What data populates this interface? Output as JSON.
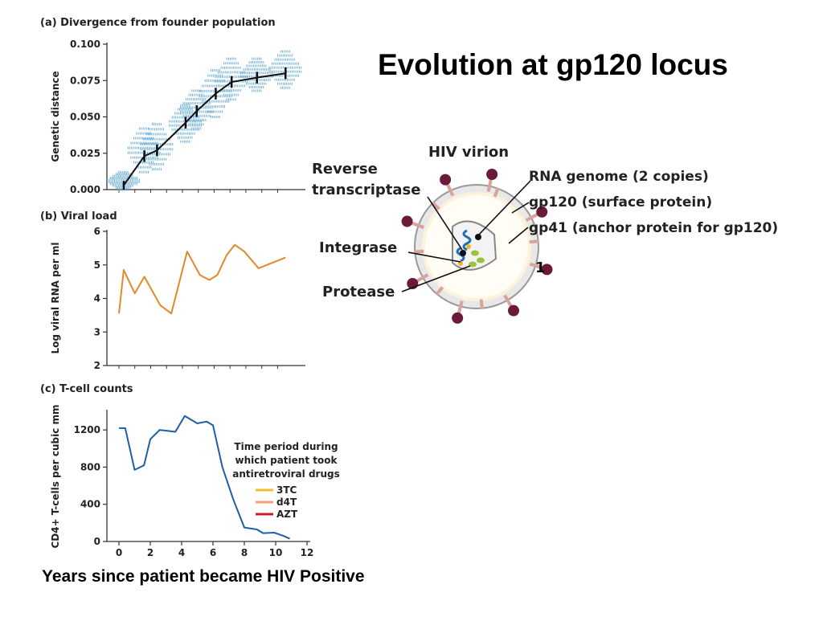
{
  "slide": {
    "title": "Evolution at gp120 locus",
    "caption": "Years since patient became HIV Positive",
    "slide_number": "1"
  },
  "chart_data": [
    {
      "id": "a",
      "type": "line",
      "title": "(a) Divergence from founder population",
      "xlabel": "",
      "ylabel": "Genetic distance",
      "ylim": [
        0,
        0.1
      ],
      "yticks": [
        "0.000",
        "0.025",
        "0.050",
        "0.075",
        "0.100"
      ],
      "x": [
        0.3,
        1.6,
        2.4,
        4.2,
        4.9,
        6.1,
        7.1,
        8.7,
        10.5
      ],
      "series": [
        {
          "values": [
            0.003,
            0.023,
            0.027,
            0.046,
            0.054,
            0.066,
            0.074,
            0.077,
            0.08
          ],
          "error": [
            0.003,
            0.004,
            0.004,
            0.004,
            0.004,
            0.004,
            0.004,
            0.004,
            0.004
          ]
        }
      ],
      "scatter_clusters": [
        {
          "x": 0.3,
          "min": 0.0,
          "max": 0.012
        },
        {
          "x": 1.6,
          "min": 0.012,
          "max": 0.042
        },
        {
          "x": 2.4,
          "min": 0.014,
          "max": 0.045
        },
        {
          "x": 4.2,
          "min": 0.033,
          "max": 0.058
        },
        {
          "x": 4.9,
          "min": 0.042,
          "max": 0.068
        },
        {
          "x": 6.1,
          "min": 0.05,
          "max": 0.082
        },
        {
          "x": 7.1,
          "min": 0.062,
          "max": 0.09
        },
        {
          "x": 8.7,
          "min": 0.068,
          "max": 0.09
        },
        {
          "x": 10.5,
          "min": 0.07,
          "max": 0.095
        }
      ],
      "color": "#111111",
      "point_color": "#6aaed6"
    },
    {
      "id": "b",
      "type": "line",
      "title": "(b) Viral load",
      "xlabel": "",
      "ylabel": "Log viral RNA per ml",
      "ylim": [
        2,
        6
      ],
      "yticks": [
        "2",
        "3",
        "4",
        "5",
        "6"
      ],
      "x": [
        0,
        0.3,
        1.0,
        1.6,
        2.6,
        3.3,
        4.3,
        5.1,
        5.7,
        6.2,
        6.8,
        7.3,
        7.9,
        8.8,
        10.5
      ],
      "series": [
        {
          "values": [
            3.55,
            4.85,
            4.15,
            4.65,
            3.8,
            3.55,
            5.4,
            4.7,
            4.55,
            4.7,
            5.3,
            5.6,
            5.4,
            4.9,
            5.22
          ]
        }
      ],
      "color": "#e08a2c"
    },
    {
      "id": "c",
      "type": "line",
      "title": "(c) T-cell counts",
      "xlabel": "",
      "ylabel": "CD4+ T-cells per cubic mm",
      "xlim": [
        0,
        12
      ],
      "ylim": [
        0,
        1400
      ],
      "xticks": [
        "0",
        "2",
        "4",
        "6",
        "8",
        "10",
        "12"
      ],
      "yticks": [
        "0",
        "400",
        "800",
        "1200"
      ],
      "x": [
        0,
        0.4,
        1.0,
        1.6,
        2.0,
        2.6,
        3.6,
        4.2,
        5.0,
        5.6,
        6.0,
        6.6,
        7.3,
        8.0,
        8.8,
        9.2,
        9.9,
        10.5,
        10.9
      ],
      "series": [
        {
          "values": [
            1220,
            1220,
            770,
            820,
            1100,
            1200,
            1180,
            1350,
            1270,
            1290,
            1250,
            800,
            450,
            150,
            130,
            90,
            95,
            60,
            30
          ]
        }
      ],
      "color": "#1f5ea8",
      "legend": {
        "title_lines": [
          "Time period during",
          "which patient took",
          "antiretroviral drugs"
        ],
        "items": [
          {
            "label": "3TC",
            "color": "#f2c22e"
          },
          {
            "label": "d4T",
            "color": "#f0a07a"
          },
          {
            "label": "AZT",
            "color": "#c8202a"
          }
        ]
      }
    }
  ],
  "diagram": {
    "title": "HIV virion",
    "labels_left": [
      "Reverse",
      "transcriptase",
      "Integrase",
      "Protease"
    ],
    "labels_right": [
      "RNA genome (2 copies)",
      "gp120 (surface protein)",
      "gp41 (anchor protein for gp120)"
    ],
    "colors": {
      "envelope": "#fdf3dd",
      "envelope_stroke": "#999999",
      "gp120": "#6b1a3a",
      "gp41": "#d9a29a",
      "rna": "#1f6fb8",
      "integrase": "#f2b62e",
      "protease": "#9ac43c"
    }
  }
}
